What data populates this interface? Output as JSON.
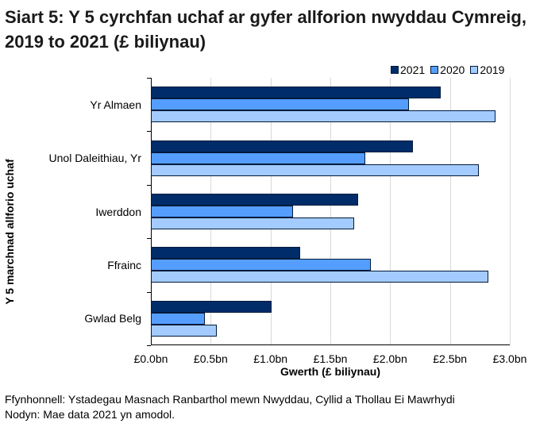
{
  "title": "Siart 5: Y 5 cyrchfan uchaf ar gyfer allforion nwyddau Cymreig, 2019 to 2021 (£ biliynau)",
  "legend": [
    {
      "label": "2021",
      "color": "#002d6a"
    },
    {
      "label": "2020",
      "color": "#559eff"
    },
    {
      "label": "2019",
      "color": "#a3cbff"
    }
  ],
  "x_axis": {
    "title": "Gwerth (£ biliynau)",
    "ticks": [
      "£0.0bn",
      "£0.5bn",
      "£1.0bn",
      "£1.5bn",
      "£2.0bn",
      "£2.5bn",
      "£3.0bn"
    ]
  },
  "y_axis": {
    "title": "Y 5 marchnad allforio uchaf"
  },
  "footer": {
    "source": "Ffynhonnell: Ystadegau Masnach Ranbarthol mewn Nwyddau, Cyllid a Thollau Ei Mawrhydi",
    "note": "Nodyn: Mae data 2021 yn amodol."
  },
  "chart_data": {
    "type": "bar",
    "orientation": "horizontal",
    "title": "Siart 5: Y 5 cyrchfan uchaf ar gyfer allforion nwyddau Cymreig, 2019 to 2021 (£ biliynau)",
    "xlabel": "Gwerth (£ biliynau)",
    "ylabel": "Y 5 marchnad allforio uchaf",
    "xlim": [
      0,
      3.0
    ],
    "x_ticks": [
      0,
      0.5,
      1.0,
      1.5,
      2.0,
      2.5,
      3.0
    ],
    "x_tick_labels": [
      "£0.0bn",
      "£0.5bn",
      "£1.0bn",
      "£1.5bn",
      "£2.0bn",
      "£2.5bn",
      "£3.0bn"
    ],
    "grid": true,
    "legend_position": "top-right",
    "categories": [
      "Yr Almaen",
      "Unol Daleithiau, Yr",
      "Iwerddon",
      "Ffrainc",
      "Gwlad Belg"
    ],
    "series": [
      {
        "name": "2021",
        "color": "#002d6a",
        "values": [
          2.42,
          2.19,
          1.73,
          1.25,
          1.01
        ]
      },
      {
        "name": "2020",
        "color": "#559eff",
        "values": [
          2.16,
          1.79,
          1.19,
          1.84,
          0.45
        ]
      },
      {
        "name": "2019",
        "color": "#a3cbff",
        "values": [
          2.88,
          2.74,
          1.7,
          2.82,
          0.55
        ]
      }
    ],
    "footer": [
      "Ffynhonnell: Ystadegau Masnach Ranbarthol mewn Nwyddau, Cyllid a Thollau Ei Mawrhydi",
      "Nodyn: Mae data 2021 yn amodol."
    ]
  }
}
